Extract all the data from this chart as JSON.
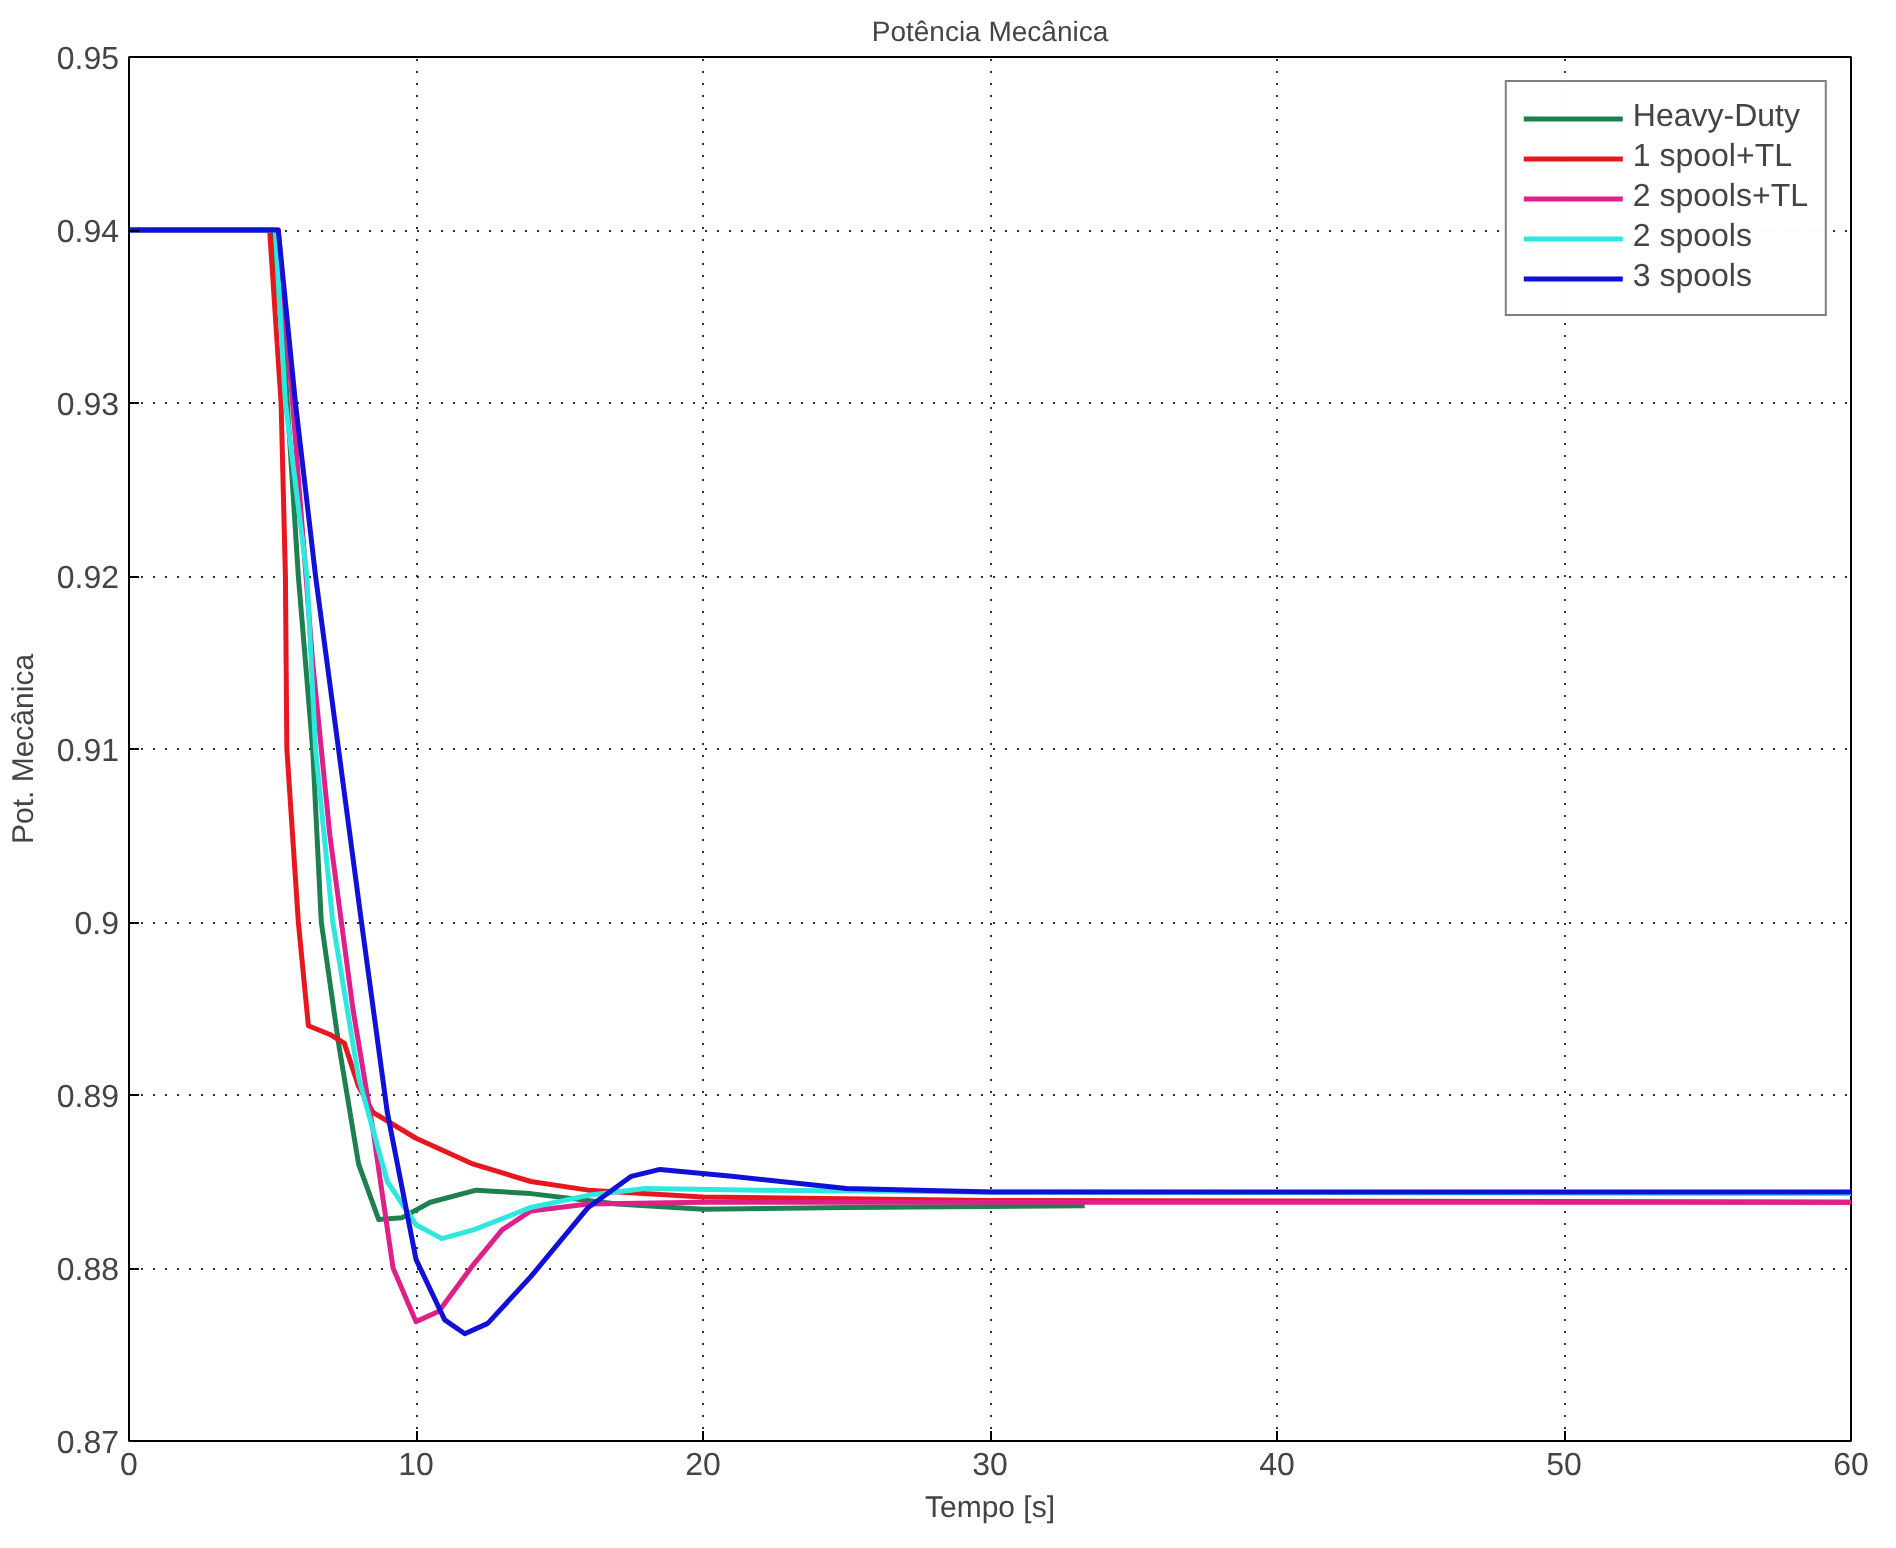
{
  "chart_data": {
    "type": "line",
    "title": "Potência Mecânica",
    "xlabel": "Tempo [s]",
    "ylabel": "Pot. Mecânica",
    "xlim": [
      0,
      60
    ],
    "ylim": [
      0.87,
      0.95
    ],
    "xticks": [
      0,
      10,
      20,
      30,
      40,
      50,
      60
    ],
    "yticks": [
      0.87,
      0.88,
      0.89,
      0.9,
      0.91,
      0.92,
      0.93,
      0.94,
      0.95
    ],
    "grid": true,
    "legend": "top right",
    "line_style": "solid",
    "series": [
      {
        "name": "Heavy-Duty",
        "color": "#1e8050",
        "x": [
          0,
          5.0,
          5.4,
          5.9,
          6.4,
          6.7,
          7.3,
          8.0,
          8.7,
          9.5,
          10.5,
          12.1,
          14,
          17,
          20,
          25,
          33.3
        ],
        "values": [
          0.94,
          0.94,
          0.933,
          0.92,
          0.91,
          0.9,
          0.893,
          0.886,
          0.8828,
          0.8829,
          0.8838,
          0.8845,
          0.8843,
          0.8837,
          0.8834,
          0.8835,
          0.8836
        ]
      },
      {
        "name": "1 spool+TL",
        "color": "#e8161e",
        "x": [
          0,
          4.9,
          5.3,
          5.45,
          5.5,
          5.9,
          6.25,
          7.0,
          7.5,
          8.0,
          8.5,
          10,
          12,
          14,
          16,
          20,
          30,
          60
        ],
        "values": [
          0.94,
          0.94,
          0.93,
          0.92,
          0.91,
          0.9,
          0.894,
          0.8935,
          0.893,
          0.8905,
          0.889,
          0.8875,
          0.886,
          0.885,
          0.8845,
          0.8841,
          0.8839,
          0.8838
        ]
      },
      {
        "name": "2 spools+TL",
        "color": "#e0208a",
        "x": [
          0,
          5.2,
          5.7,
          6.4,
          7.0,
          7.8,
          8.5,
          9.2,
          10.0,
          10.8,
          12,
          13,
          14,
          16,
          20,
          30,
          60
        ],
        "values": [
          0.94,
          0.94,
          0.93,
          0.915,
          0.905,
          0.895,
          0.888,
          0.88,
          0.8769,
          0.8775,
          0.8802,
          0.8822,
          0.8833,
          0.8837,
          0.8838,
          0.8838,
          0.8838
        ]
      },
      {
        "name": "2 spools",
        "color": "#2ee8e0",
        "x": [
          0,
          5.1,
          5.45,
          6.2,
          6.5,
          7.1,
          8.0,
          9.0,
          10.0,
          10.9,
          12,
          14,
          16,
          18,
          22,
          30,
          60
        ],
        "values": [
          0.94,
          0.94,
          0.93,
          0.92,
          0.91,
          0.9,
          0.891,
          0.885,
          0.8825,
          0.8817,
          0.8822,
          0.8835,
          0.8842,
          0.8846,
          0.8845,
          0.8844,
          0.8843
        ]
      },
      {
        "name": "3 spools",
        "color": "#1010d8",
        "x": [
          0,
          5.2,
          5.8,
          6.5,
          7.3,
          8.1,
          9.0,
          10.0,
          11.0,
          11.7,
          12.5,
          14,
          16,
          17.5,
          18.5,
          21,
          25,
          30,
          60
        ],
        "values": [
          0.94,
          0.94,
          0.93,
          0.92,
          0.91,
          0.9,
          0.889,
          0.8805,
          0.877,
          0.8762,
          0.8768,
          0.8795,
          0.8835,
          0.8853,
          0.8857,
          0.8853,
          0.8846,
          0.8844,
          0.8844
        ]
      }
    ]
  }
}
